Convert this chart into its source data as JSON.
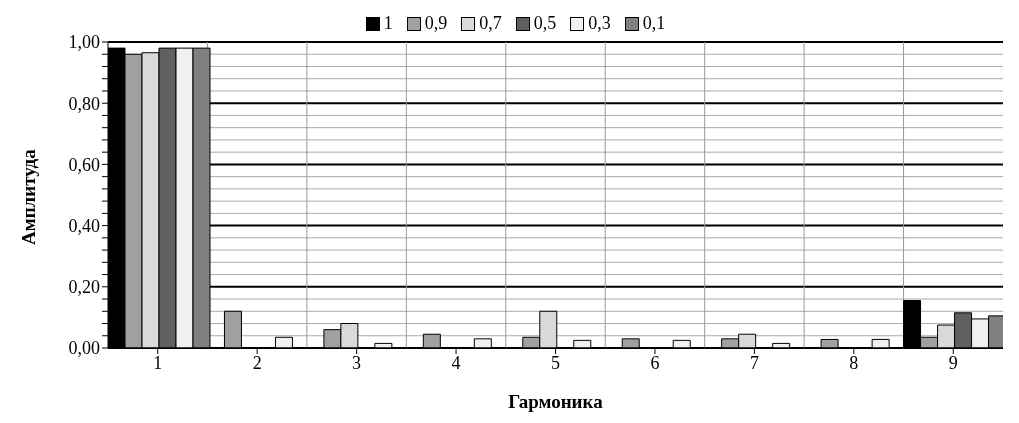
{
  "chart_data": {
    "type": "bar",
    "xlabel": "Гармоника",
    "ylabel": "Амплитуда",
    "categories": [
      "1",
      "2",
      "3",
      "4",
      "5",
      "6",
      "7",
      "8",
      "9"
    ],
    "series": [
      {
        "name": "1",
        "color": "#000000",
        "values": [
          0.98,
          0,
          0,
          0,
          0,
          0,
          0,
          0,
          0.155
        ]
      },
      {
        "name": "0,9",
        "color": "#a0a0a0",
        "values": [
          0.96,
          0.12,
          0.06,
          0.045,
          0.035,
          0.03,
          0.03,
          0.028,
          0.035
        ]
      },
      {
        "name": "0,7",
        "color": "#d9d9d9",
        "values": [
          0.965,
          0,
          0.08,
          0,
          0.12,
          0,
          0.045,
          0,
          0.075
        ]
      },
      {
        "name": "0,5",
        "color": "#606060",
        "values": [
          0.98,
          0,
          0,
          0,
          0,
          0,
          0,
          0,
          0.115
        ]
      },
      {
        "name": "0,3",
        "color": "#f0f0f0",
        "values": [
          0.98,
          0.035,
          0.015,
          0.03,
          0.025,
          0.025,
          0.015,
          0.028,
          0.095
        ]
      },
      {
        "name": "0,1",
        "color": "#808080",
        "values": [
          0.98,
          0,
          0,
          0,
          0,
          0,
          0,
          0,
          0.105
        ]
      }
    ],
    "ylim": [
      0,
      1
    ],
    "yticks": [
      {
        "value": 0,
        "label": "0,00"
      },
      {
        "value": 0.04,
        "label": null
      },
      {
        "value": 0.08,
        "label": null
      },
      {
        "value": 0.12,
        "label": null
      },
      {
        "value": 0.16,
        "label": null
      },
      {
        "value": 0.2,
        "label": "0,20"
      },
      {
        "value": 0.24,
        "label": null
      },
      {
        "value": 0.28,
        "label": null
      },
      {
        "value": 0.32,
        "label": null
      },
      {
        "value": 0.36,
        "label": null
      },
      {
        "value": 0.4,
        "label": "0,40"
      },
      {
        "value": 0.44,
        "label": null
      },
      {
        "value": 0.48,
        "label": null
      },
      {
        "value": 0.52,
        "label": null
      },
      {
        "value": 0.56,
        "label": null
      },
      {
        "value": 0.6,
        "label": "0,60"
      },
      {
        "value": 0.64,
        "label": null
      },
      {
        "value": 0.68,
        "label": null
      },
      {
        "value": 0.72,
        "label": null
      },
      {
        "value": 0.76,
        "label": null
      },
      {
        "value": 0.8,
        "label": "0,80"
      },
      {
        "value": 0.84,
        "label": null
      },
      {
        "value": 0.88,
        "label": null
      },
      {
        "value": 0.92,
        "label": null
      },
      {
        "value": 0.96,
        "label": null
      },
      {
        "value": 1,
        "label": "1,00"
      }
    ],
    "grid": true,
    "legend": "top"
  }
}
